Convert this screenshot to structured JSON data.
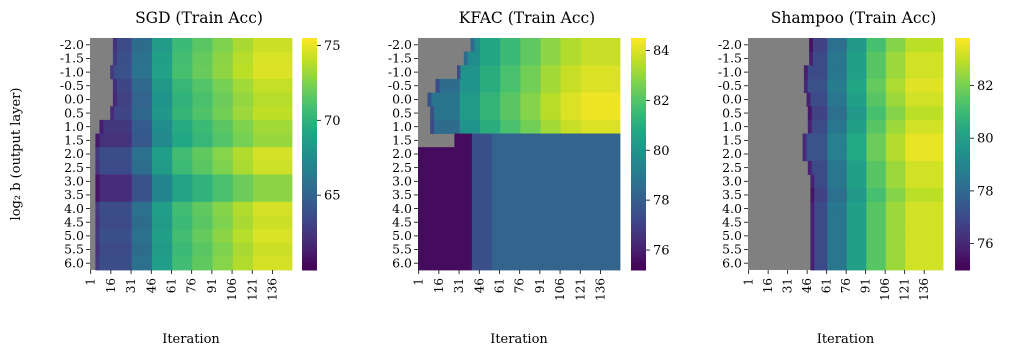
{
  "chart_data": [
    {
      "type": "heatmap",
      "title": "SGD (Train Acc)",
      "xlabel": "Iteration",
      "ylabel": "log₂ b (output layer)",
      "y_categories": [
        "-2.0",
        "-1.5",
        "-1.0",
        "-0.5",
        "0.0",
        "0.5",
        "1.0",
        "1.5",
        "2.0",
        "2.5",
        "3.0",
        "3.5",
        "4.0",
        "4.5",
        "5.0",
        "5.5",
        "6.0"
      ],
      "x_ticks": [
        "1",
        "16",
        "31",
        "46",
        "61",
        "76",
        "91",
        "106",
        "121",
        "136"
      ],
      "n_iterations": 150,
      "colorbar": {
        "min": 60,
        "max": 75.5,
        "ticks": [
          65,
          70,
          75
        ]
      },
      "missing_color": "#808080",
      "start_iteration": [
        18,
        18,
        16,
        18,
        18,
        16,
        8,
        5,
        5,
        5,
        5,
        5,
        5,
        5,
        5,
        5,
        5
      ],
      "stages": [
        {
          "until": 31,
          "value": 63.5
        },
        {
          "until": 46,
          "value": 65.5
        },
        {
          "until": 61,
          "value": 68.5
        },
        {
          "until": 76,
          "value": 70.5
        },
        {
          "until": 91,
          "value": 71.5
        },
        {
          "until": 106,
          "value": 72.5
        },
        {
          "until": 121,
          "value": 73.5
        },
        {
          "until": 150,
          "value": 74.3
        }
      ],
      "row_offsets": [
        0.0,
        0.3,
        0.4,
        -0.2,
        -0.5,
        -0.3,
        -1.0,
        -1.2,
        0.2,
        0.0,
        -1.5,
        -1.5,
        0.2,
        0.0,
        0.3,
        0.0,
        0.2
      ]
    },
    {
      "type": "heatmap",
      "title": "KFAC (Train Acc)",
      "xlabel": "Iteration",
      "ylabel": "",
      "y_categories": [
        "-2.0",
        "-1.5",
        "-1.0",
        "-0.5",
        "0.0",
        "0.5",
        "1.0",
        "1.5",
        "2.0",
        "2.5",
        "3.0",
        "3.5",
        "4.0",
        "4.5",
        "5.0",
        "5.5",
        "6.0"
      ],
      "x_ticks": [
        "1",
        "16",
        "31",
        "46",
        "61",
        "76",
        "91",
        "106",
        "121",
        "136"
      ],
      "n_iterations": 150,
      "colorbar": {
        "min": 75.2,
        "max": 84.5,
        "ticks": [
          76,
          78,
          80,
          82,
          84
        ]
      },
      "missing_color": "#808080",
      "start_iteration": [
        40,
        35,
        30,
        14,
        8,
        10,
        10,
        28,
        1,
        1,
        1,
        1,
        1,
        1,
        1,
        1,
        1
      ],
      "stages": [
        {
          "until": 31,
          "value": 78.5
        },
        {
          "until": 46,
          "value": 80.0
        },
        {
          "until": 61,
          "value": 81.0
        },
        {
          "until": 76,
          "value": 81.8
        },
        {
          "until": 91,
          "value": 82.5
        },
        {
          "until": 106,
          "value": 83.2
        },
        {
          "until": 121,
          "value": 83.7
        },
        {
          "until": 150,
          "value": 84.0
        }
      ],
      "row_offsets": [
        -0.3,
        -0.3,
        0.0,
        0.0,
        0.3,
        0.3,
        0.0,
        0,
        0,
        0,
        0,
        0,
        0,
        0,
        0,
        0,
        0
      ],
      "lower_block": {
        "from_row": 7,
        "stages": [
          {
            "until": 40,
            "value": 75.5
          },
          {
            "until": 55,
            "value": 77.5
          },
          {
            "until": 150,
            "value": 78.2
          }
        ]
      }
    },
    {
      "type": "heatmap",
      "title": "Shampoo (Train Acc)",
      "xlabel": "Iteration",
      "ylabel": "",
      "y_categories": [
        "-2.0",
        "-1.5",
        "-1.0",
        "-0.5",
        "0.0",
        "0.5",
        "1.0",
        "1.5",
        "2.0",
        "2.5",
        "3.0",
        "3.5",
        "4.0",
        "4.5",
        "5.0",
        "5.5",
        "6.0"
      ],
      "x_ticks": [
        "1",
        "16",
        "31",
        "46",
        "61",
        "76",
        "91",
        "106",
        "121",
        "136"
      ],
      "n_iterations": 150,
      "colorbar": {
        "min": 75.0,
        "max": 83.8,
        "ticks": [
          76,
          78,
          80,
          82
        ]
      },
      "missing_color": "#808080",
      "start_iteration": [
        48,
        48,
        44,
        44,
        46,
        47,
        47,
        43,
        43,
        47,
        49,
        49,
        49,
        49,
        49,
        49,
        49
      ],
      "stages": [
        {
          "until": 61,
          "value": 77.0
        },
        {
          "until": 76,
          "value": 78.5
        },
        {
          "until": 91,
          "value": 80.0
        },
        {
          "until": 106,
          "value": 81.5
        },
        {
          "until": 121,
          "value": 82.5
        },
        {
          "until": 150,
          "value": 83.2
        }
      ],
      "row_offsets": [
        -0.3,
        0.0,
        0.0,
        0.2,
        0.0,
        -0.3,
        0.0,
        0.3,
        0.3,
        0.0,
        0.0,
        -0.3,
        0.0,
        0.0,
        0.0,
        0.0,
        0.0
      ]
    }
  ]
}
